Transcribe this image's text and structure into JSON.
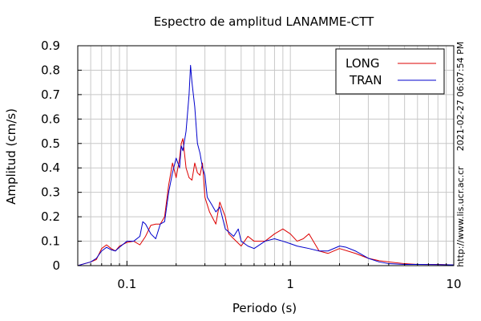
{
  "chart_data": {
    "type": "line",
    "title": "Espectro de amplitud LANAMME-CTT",
    "xlabel": "Periodo (s)",
    "ylabel": "Amplitud (cm/s)",
    "x_scale": "log",
    "xlim": [
      0.05,
      10
    ],
    "ylim": [
      0,
      0.9
    ],
    "x_ticks": [
      {
        "value": 0.1,
        "label": "0.1"
      },
      {
        "value": 1,
        "label": "1"
      },
      {
        "value": 10,
        "label": "10"
      }
    ],
    "y_ticks": [
      {
        "value": 0,
        "label": "0"
      },
      {
        "value": 0.1,
        "label": "0.1"
      },
      {
        "value": 0.2,
        "label": "0.2"
      },
      {
        "value": 0.3,
        "label": "0.3"
      },
      {
        "value": 0.4,
        "label": "0.4"
      },
      {
        "value": 0.5,
        "label": "0.5"
      },
      {
        "value": 0.6,
        "label": "0.6"
      },
      {
        "value": 0.7,
        "label": "0.7"
      },
      {
        "value": 0.8,
        "label": "0.8"
      },
      {
        "value": 0.9,
        "label": "0.9"
      }
    ],
    "grid": true,
    "legend_position": "top-right",
    "series": [
      {
        "name": "LONG",
        "color": "#dd0000",
        "points": [
          [
            0.05,
            0.0
          ],
          [
            0.055,
            0.008
          ],
          [
            0.06,
            0.015
          ],
          [
            0.065,
            0.025
          ],
          [
            0.07,
            0.07
          ],
          [
            0.075,
            0.085
          ],
          [
            0.08,
            0.07
          ],
          [
            0.085,
            0.06
          ],
          [
            0.09,
            0.08
          ],
          [
            0.1,
            0.095
          ],
          [
            0.11,
            0.1
          ],
          [
            0.12,
            0.085
          ],
          [
            0.13,
            0.12
          ],
          [
            0.14,
            0.165
          ],
          [
            0.15,
            0.17
          ],
          [
            0.16,
            0.17
          ],
          [
            0.17,
            0.2
          ],
          [
            0.18,
            0.33
          ],
          [
            0.19,
            0.42
          ],
          [
            0.2,
            0.36
          ],
          [
            0.21,
            0.44
          ],
          [
            0.215,
            0.5
          ],
          [
            0.22,
            0.52
          ],
          [
            0.23,
            0.4
          ],
          [
            0.24,
            0.36
          ],
          [
            0.25,
            0.35
          ],
          [
            0.26,
            0.42
          ],
          [
            0.27,
            0.38
          ],
          [
            0.28,
            0.37
          ],
          [
            0.29,
            0.42
          ],
          [
            0.3,
            0.28
          ],
          [
            0.32,
            0.22
          ],
          [
            0.35,
            0.17
          ],
          [
            0.37,
            0.26
          ],
          [
            0.4,
            0.2
          ],
          [
            0.42,
            0.13
          ],
          [
            0.45,
            0.11
          ],
          [
            0.5,
            0.08
          ],
          [
            0.55,
            0.12
          ],
          [
            0.6,
            0.1
          ],
          [
            0.7,
            0.1
          ],
          [
            0.8,
            0.13
          ],
          [
            0.9,
            0.15
          ],
          [
            1.0,
            0.13
          ],
          [
            1.1,
            0.1
          ],
          [
            1.2,
            0.11
          ],
          [
            1.3,
            0.13
          ],
          [
            1.5,
            0.06
          ],
          [
            1.7,
            0.05
          ],
          [
            2.0,
            0.07
          ],
          [
            2.5,
            0.05
          ],
          [
            3.0,
            0.03
          ],
          [
            3.5,
            0.02
          ],
          [
            4.0,
            0.015
          ],
          [
            5.0,
            0.008
          ],
          [
            6.0,
            0.005
          ],
          [
            8.0,
            0.005
          ],
          [
            10.0,
            0.003
          ]
        ]
      },
      {
        "name": "TRAN",
        "color": "#0000cc",
        "points": [
          [
            0.05,
            0.0
          ],
          [
            0.055,
            0.008
          ],
          [
            0.06,
            0.015
          ],
          [
            0.065,
            0.03
          ],
          [
            0.07,
            0.06
          ],
          [
            0.075,
            0.075
          ],
          [
            0.08,
            0.065
          ],
          [
            0.085,
            0.06
          ],
          [
            0.09,
            0.075
          ],
          [
            0.1,
            0.1
          ],
          [
            0.11,
            0.1
          ],
          [
            0.12,
            0.12
          ],
          [
            0.125,
            0.18
          ],
          [
            0.13,
            0.17
          ],
          [
            0.14,
            0.13
          ],
          [
            0.15,
            0.11
          ],
          [
            0.16,
            0.17
          ],
          [
            0.17,
            0.18
          ],
          [
            0.18,
            0.3
          ],
          [
            0.19,
            0.38
          ],
          [
            0.2,
            0.44
          ],
          [
            0.21,
            0.4
          ],
          [
            0.215,
            0.49
          ],
          [
            0.22,
            0.47
          ],
          [
            0.23,
            0.55
          ],
          [
            0.24,
            0.7
          ],
          [
            0.245,
            0.82
          ],
          [
            0.25,
            0.75
          ],
          [
            0.26,
            0.65
          ],
          [
            0.27,
            0.5
          ],
          [
            0.28,
            0.46
          ],
          [
            0.29,
            0.4
          ],
          [
            0.3,
            0.37
          ],
          [
            0.31,
            0.28
          ],
          [
            0.33,
            0.25
          ],
          [
            0.35,
            0.22
          ],
          [
            0.37,
            0.24
          ],
          [
            0.4,
            0.15
          ],
          [
            0.45,
            0.12
          ],
          [
            0.48,
            0.15
          ],
          [
            0.5,
            0.1
          ],
          [
            0.55,
            0.08
          ],
          [
            0.6,
            0.07
          ],
          [
            0.7,
            0.1
          ],
          [
            0.8,
            0.11
          ],
          [
            0.9,
            0.1
          ],
          [
            1.0,
            0.09
          ],
          [
            1.1,
            0.08
          ],
          [
            1.3,
            0.07
          ],
          [
            1.5,
            0.06
          ],
          [
            1.7,
            0.06
          ],
          [
            2.0,
            0.08
          ],
          [
            2.2,
            0.075
          ],
          [
            2.5,
            0.06
          ],
          [
            3.0,
            0.03
          ],
          [
            3.5,
            0.015
          ],
          [
            4.0,
            0.008
          ],
          [
            5.0,
            0.005
          ],
          [
            6.0,
            0.005
          ],
          [
            8.0,
            0.004
          ],
          [
            10.0,
            0.003
          ]
        ]
      }
    ],
    "side_annotations": [
      {
        "text": "2021-02-27 06:07:54 PM"
      },
      {
        "text": "http://www.lis.ucr.ac.cr"
      }
    ]
  }
}
